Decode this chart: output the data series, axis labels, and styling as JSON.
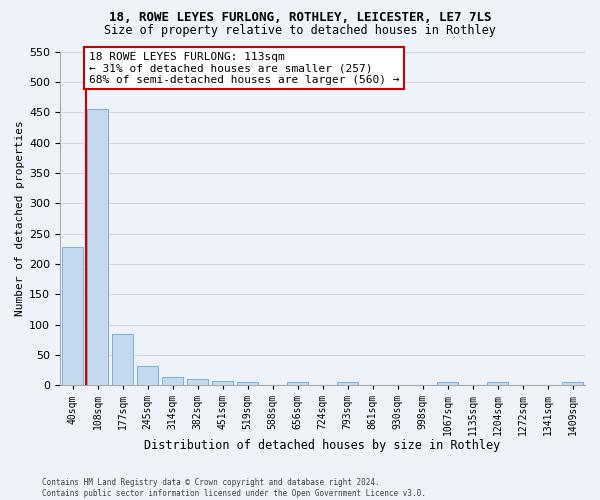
{
  "title1": "18, ROWE LEYES FURLONG, ROTHLEY, LEICESTER, LE7 7LS",
  "title2": "Size of property relative to detached houses in Rothley",
  "xlabel": "Distribution of detached houses by size in Rothley",
  "ylabel": "Number of detached properties",
  "bar_values": [
    228,
    455,
    84,
    32,
    13,
    11,
    7,
    5,
    0,
    5,
    0,
    5,
    0,
    0,
    0,
    5,
    0,
    5,
    0,
    0,
    5
  ],
  "bar_labels": [
    "40sqm",
    "108sqm",
    "177sqm",
    "245sqm",
    "314sqm",
    "382sqm",
    "451sqm",
    "519sqm",
    "588sqm",
    "656sqm",
    "724sqm",
    "793sqm",
    "861sqm",
    "930sqm",
    "998sqm",
    "1067sqm",
    "1135sqm",
    "1204sqm",
    "1272sqm",
    "1341sqm",
    "1409sqm"
  ],
  "bar_color": "#c5d9ee",
  "bar_edge_color": "#7aafe0",
  "property_line_color": "#cc0000",
  "property_line_x": 0.55,
  "annotation_text": "18 ROWE LEYES FURLONG: 113sqm\n← 31% of detached houses are smaller (257)\n68% of semi-detached houses are larger (560) →",
  "annotation_box_facecolor": "#ffffff",
  "annotation_box_edgecolor": "#cc0000",
  "ylim_max": 550,
  "yticks": [
    0,
    50,
    100,
    150,
    200,
    250,
    300,
    350,
    400,
    450,
    500,
    550
  ],
  "footer": "Contains HM Land Registry data © Crown copyright and database right 2024.\nContains public sector information licensed under the Open Government Licence v3.0.",
  "background_color": "#eef2f9",
  "grid_color": "#d0d8e8",
  "title1_fontsize": 9,
  "title2_fontsize": 8.5,
  "xlabel_fontsize": 8.5,
  "ylabel_fontsize": 8,
  "tick_fontsize": 8,
  "bar_label_fontsize": 7,
  "annotation_fontsize": 8,
  "footer_fontsize": 5.5
}
